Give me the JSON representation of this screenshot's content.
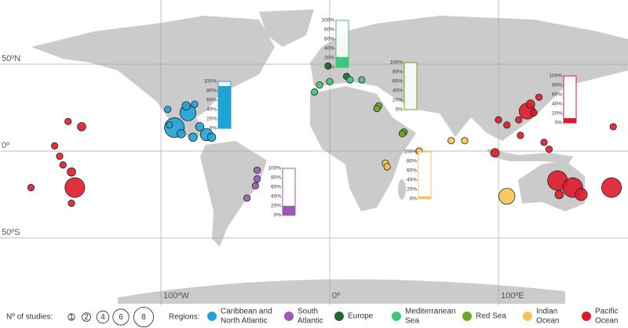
{
  "map": {
    "lat_lines": [
      {
        "value": 50,
        "label": "50ºN"
      },
      {
        "value": 0,
        "label": "0º"
      },
      {
        "value": -50,
        "label": "50ºS"
      }
    ],
    "lon_lines": [
      {
        "value": -100,
        "label": "100ºW"
      },
      {
        "value": 0,
        "label": "0º"
      },
      {
        "value": 100,
        "label": "100ºE"
      }
    ],
    "points": [
      {
        "lon": -96,
        "lat": 24,
        "studies": 1,
        "region": 0
      },
      {
        "lon": -84,
        "lat": 22,
        "studies": 6,
        "region": 0
      },
      {
        "lon": -85,
        "lat": 26,
        "studies": 2,
        "region": 0
      },
      {
        "lon": -92,
        "lat": 13.5,
        "studies": 8,
        "region": 0
      },
      {
        "lon": -88,
        "lat": 10,
        "studies": 2,
        "region": 0
      },
      {
        "lon": -81,
        "lat": 8,
        "studies": 2,
        "region": 0
      },
      {
        "lon": -73,
        "lat": 9.5,
        "studies": 4,
        "region": 0
      },
      {
        "lon": -70,
        "lat": 8,
        "studies": 2,
        "region": 0
      },
      {
        "lon": -77,
        "lat": 14,
        "studies": 2,
        "region": 0
      },
      {
        "lon": -95,
        "lat": 15,
        "studies": 1,
        "region": 0
      },
      {
        "lon": -80,
        "lat": 27,
        "studies": 1,
        "region": 0
      },
      {
        "lon": -43,
        "lat": -11,
        "studies": 1,
        "region": 1
      },
      {
        "lon": -43,
        "lat": -16,
        "studies": 1,
        "region": 1
      },
      {
        "lon": -44,
        "lat": -20,
        "studies": 1,
        "region": 1
      },
      {
        "lon": -49,
        "lat": -27,
        "studies": 1,
        "region": 1
      },
      {
        "lon": -1,
        "lat": 49,
        "studies": 1,
        "region": 2
      },
      {
        "lon": 10,
        "lat": 43,
        "studies": 1,
        "region": 2
      },
      {
        "lon": -9,
        "lat": 34,
        "studies": 1,
        "region": 3
      },
      {
        "lon": -6,
        "lat": 38,
        "studies": 1,
        "region": 3
      },
      {
        "lon": 0,
        "lat": 40,
        "studies": 1,
        "region": 3
      },
      {
        "lon": 12,
        "lat": 41,
        "studies": 1,
        "region": 3
      },
      {
        "lon": 19,
        "lat": 41,
        "studies": 1,
        "region": 3
      },
      {
        "lon": 29,
        "lat": 26,
        "studies": 1,
        "region": 4
      },
      {
        "lon": 28,
        "lat": 24.5,
        "studies": 1,
        "region": 4
      },
      {
        "lon": 44,
        "lat": 11,
        "studies": 1,
        "region": 4
      },
      {
        "lon": 43,
        "lat": 10,
        "studies": 1,
        "region": 4
      },
      {
        "lon": 33,
        "lat": -7,
        "studies": 1,
        "region": 5
      },
      {
        "lon": 34,
        "lat": -9,
        "studies": 1,
        "region": 5
      },
      {
        "lon": 53,
        "lat": 0,
        "studies": 1,
        "region": 5
      },
      {
        "lon": 72,
        "lat": 6,
        "studies": 1,
        "region": 5
      },
      {
        "lon": 80,
        "lat": 6,
        "studies": 1,
        "region": 5
      },
      {
        "lon": 105,
        "lat": -26,
        "studies": 6,
        "region": 5
      },
      {
        "lon": -177,
        "lat": -21,
        "studies": 1,
        "region": 6
      },
      {
        "lon": -163,
        "lat": 3,
        "studies": 1,
        "region": 6
      },
      {
        "lon": -160,
        "lat": -3,
        "studies": 1,
        "region": 6
      },
      {
        "lon": -158,
        "lat": -8,
        "studies": 1,
        "region": 6
      },
      {
        "lon": -153,
        "lat": -12,
        "studies": 2,
        "region": 6
      },
      {
        "lon": -151,
        "lat": -21,
        "studies": 8,
        "region": 6
      },
      {
        "lon": -153,
        "lat": -30,
        "studies": 1,
        "region": 6
      },
      {
        "lon": -147,
        "lat": 14,
        "studies": 2,
        "region": 6
      },
      {
        "lon": -155,
        "lat": 17,
        "studies": 1,
        "region": 6
      },
      {
        "lon": 117,
        "lat": 23,
        "studies": 6,
        "region": 6
      },
      {
        "lon": 112,
        "lat": 18,
        "studies": 1,
        "region": 6
      },
      {
        "lon": 105,
        "lat": 15,
        "studies": 1,
        "region": 6
      },
      {
        "lon": 100,
        "lat": 18,
        "studies": 1,
        "region": 6
      },
      {
        "lon": 124,
        "lat": 31,
        "studies": 1,
        "region": 6
      },
      {
        "lon": 121,
        "lat": 22,
        "studies": 1,
        "region": 6
      },
      {
        "lon": 130,
        "lat": 1,
        "studies": 1,
        "region": 6
      },
      {
        "lon": 127,
        "lat": 5,
        "studies": 1,
        "region": 6
      },
      {
        "lon": 113,
        "lat": 9,
        "studies": 1,
        "region": 6
      },
      {
        "lon": 98,
        "lat": -1,
        "studies": 2,
        "region": 6
      },
      {
        "lon": 119,
        "lat": 27,
        "studies": 2,
        "region": 6
      },
      {
        "lon": 135,
        "lat": -17,
        "studies": 8,
        "region": 6
      },
      {
        "lon": 144,
        "lat": -21,
        "studies": 8,
        "region": 6
      },
      {
        "lon": 149,
        "lat": -25,
        "studies": 4,
        "region": 6
      },
      {
        "lon": 136,
        "lat": -25,
        "studies": 2,
        "region": 6
      },
      {
        "lon": 167,
        "lat": -21,
        "studies": 8,
        "region": 6
      },
      {
        "lon": 168,
        "lat": 14,
        "studies": 1,
        "region": 6
      }
    ]
  },
  "gauges": {
    "ticks": [
      {
        "value": 0,
        "label": "0%"
      },
      {
        "value": 20,
        "label": "20%"
      },
      {
        "value": 40,
        "label": "40%"
      },
      {
        "value": 60,
        "label": "60%"
      },
      {
        "value": 80,
        "label": "80%"
      },
      {
        "value": 100,
        "label": "100%"
      }
    ],
    "items": [
      {
        "region": 0,
        "value": 90
      },
      {
        "region": 1,
        "value": 20
      },
      {
        "region": 3,
        "value": 22
      },
      {
        "region": 4,
        "value": 0
      },
      {
        "region": 5,
        "value": 5
      },
      {
        "region": 6,
        "value": 10
      }
    ]
  },
  "legend": {
    "size_title": "Nº of studies:",
    "sizes": [
      1,
      2,
      4,
      6,
      8
    ],
    "regions_title": "Regions:",
    "regions": [
      {
        "name": [
          "Caribbean and",
          "North Atlantic"
        ],
        "color": "#1fa3d6"
      },
      {
        "name": [
          "South",
          "Atlantic"
        ],
        "color": "#9b59b6"
      },
      {
        "name": [
          "Europe"
        ],
        "color": "#1e6b2a"
      },
      {
        "name": [
          "Mediterranean",
          "Sea"
        ],
        "color": "#3ec47c"
      },
      {
        "name": [
          "Red Sea"
        ],
        "color": "#6aaa1e"
      },
      {
        "name": [
          "Indian",
          "Ocean"
        ],
        "color": "#f7c450"
      },
      {
        "name": [
          "Pacific",
          "Ocean"
        ],
        "color": "#e0192a"
      }
    ]
  }
}
